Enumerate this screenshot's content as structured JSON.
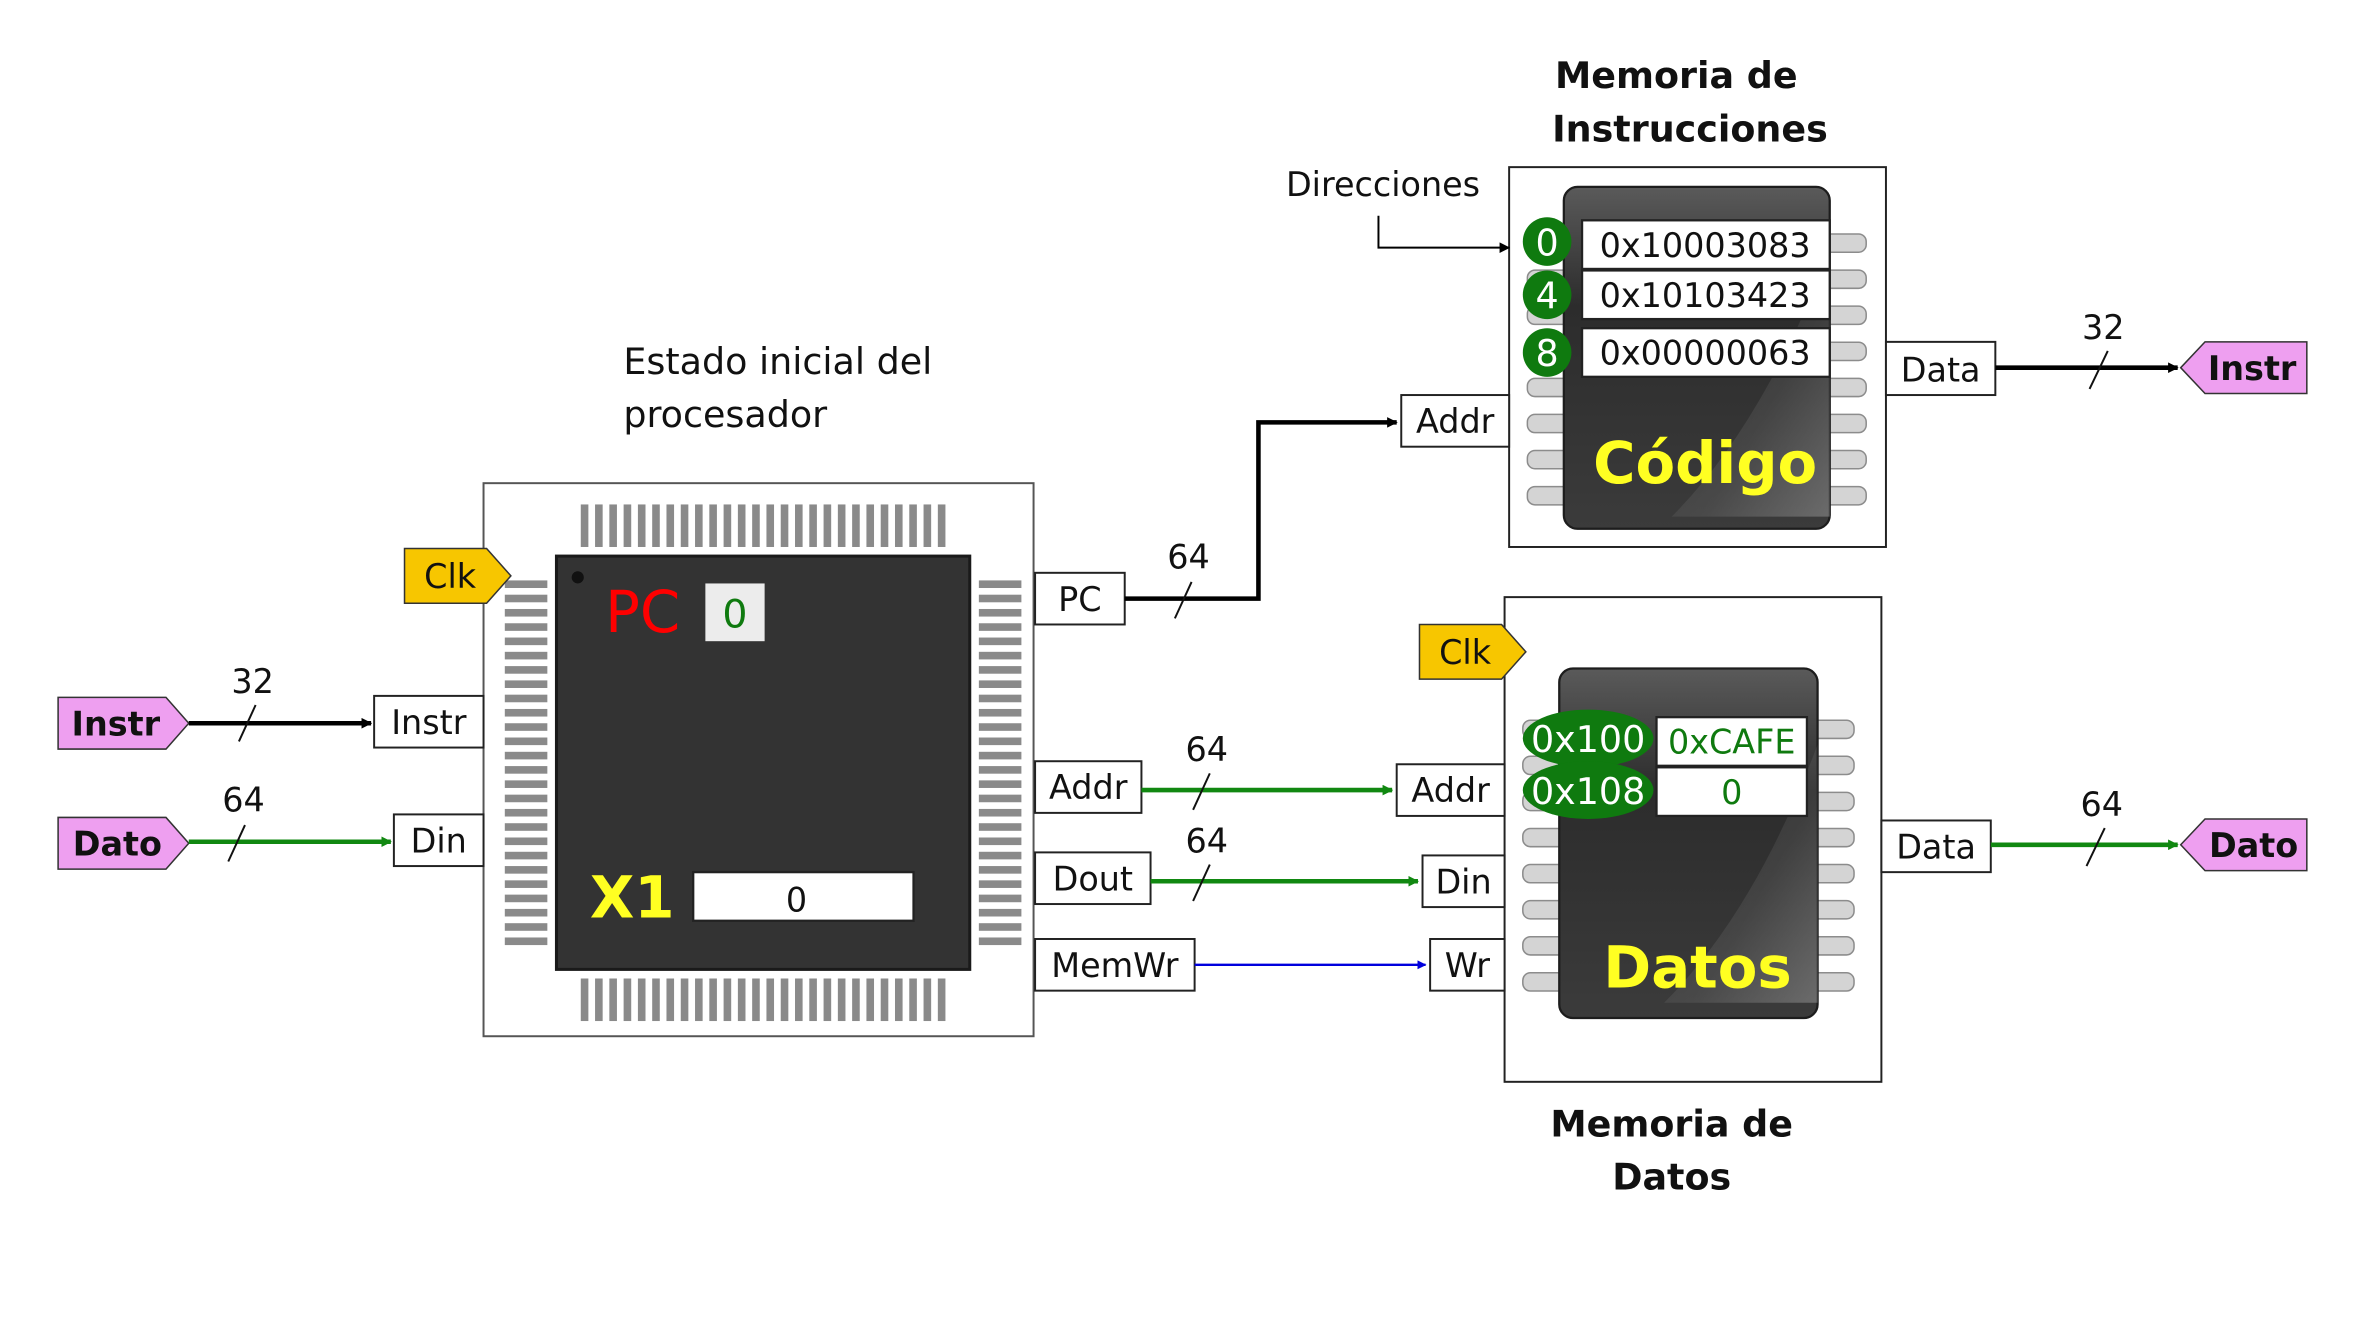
{
  "processor": {
    "caption_line1": "Estado inicial del",
    "caption_line2": "procesador",
    "pc_label": "PC",
    "pc_value": "0",
    "x1_label": "X1",
    "x1_value": "0",
    "ports": {
      "clk": "Clk",
      "instr": "Instr",
      "din": "Din",
      "pc": "PC",
      "addr": "Addr",
      "dout": "Dout",
      "memwr": "MemWr"
    }
  },
  "inputs": {
    "instr": "Instr",
    "dato": "Dato",
    "instr_width": "32",
    "dato_width": "64"
  },
  "buses": {
    "pc_width": "64",
    "addr_width": "64",
    "dout_width": "64"
  },
  "instr_mem": {
    "title_line1": "Memoria de",
    "title_line2": "Instrucciones",
    "addresses_label": "Direcciones",
    "chip_label": "Código",
    "ports": {
      "addr": "Addr",
      "data": "Data"
    },
    "data_width": "32",
    "output_tag": "Instr",
    "rows": [
      {
        "addr": "0",
        "value": "0x10003083"
      },
      {
        "addr": "4",
        "value": "0x10103423"
      },
      {
        "addr": "8",
        "value": "0x00000063"
      }
    ]
  },
  "data_mem": {
    "title_line1": "Memoria de",
    "title_line2": "Datos",
    "chip_label": "Datos",
    "ports": {
      "clk": "Clk",
      "addr": "Addr",
      "din": "Din",
      "wr": "Wr",
      "data": "Data"
    },
    "data_width": "64",
    "output_tag": "Dato",
    "rows": [
      {
        "addr": "0x100",
        "value": "0xCAFE"
      },
      {
        "addr": "0x108",
        "value": "0"
      }
    ]
  },
  "colors": {
    "tag_purple": "#ee9ff0",
    "tag_yellow": "#f7c600",
    "bus_green": "#118811",
    "signal_blue": "#0000dd",
    "chip_dark": "#323232",
    "pc_red": "#ff0000",
    "x1_yellow": "#ffff22",
    "badge_green": "#0f7a0f"
  }
}
